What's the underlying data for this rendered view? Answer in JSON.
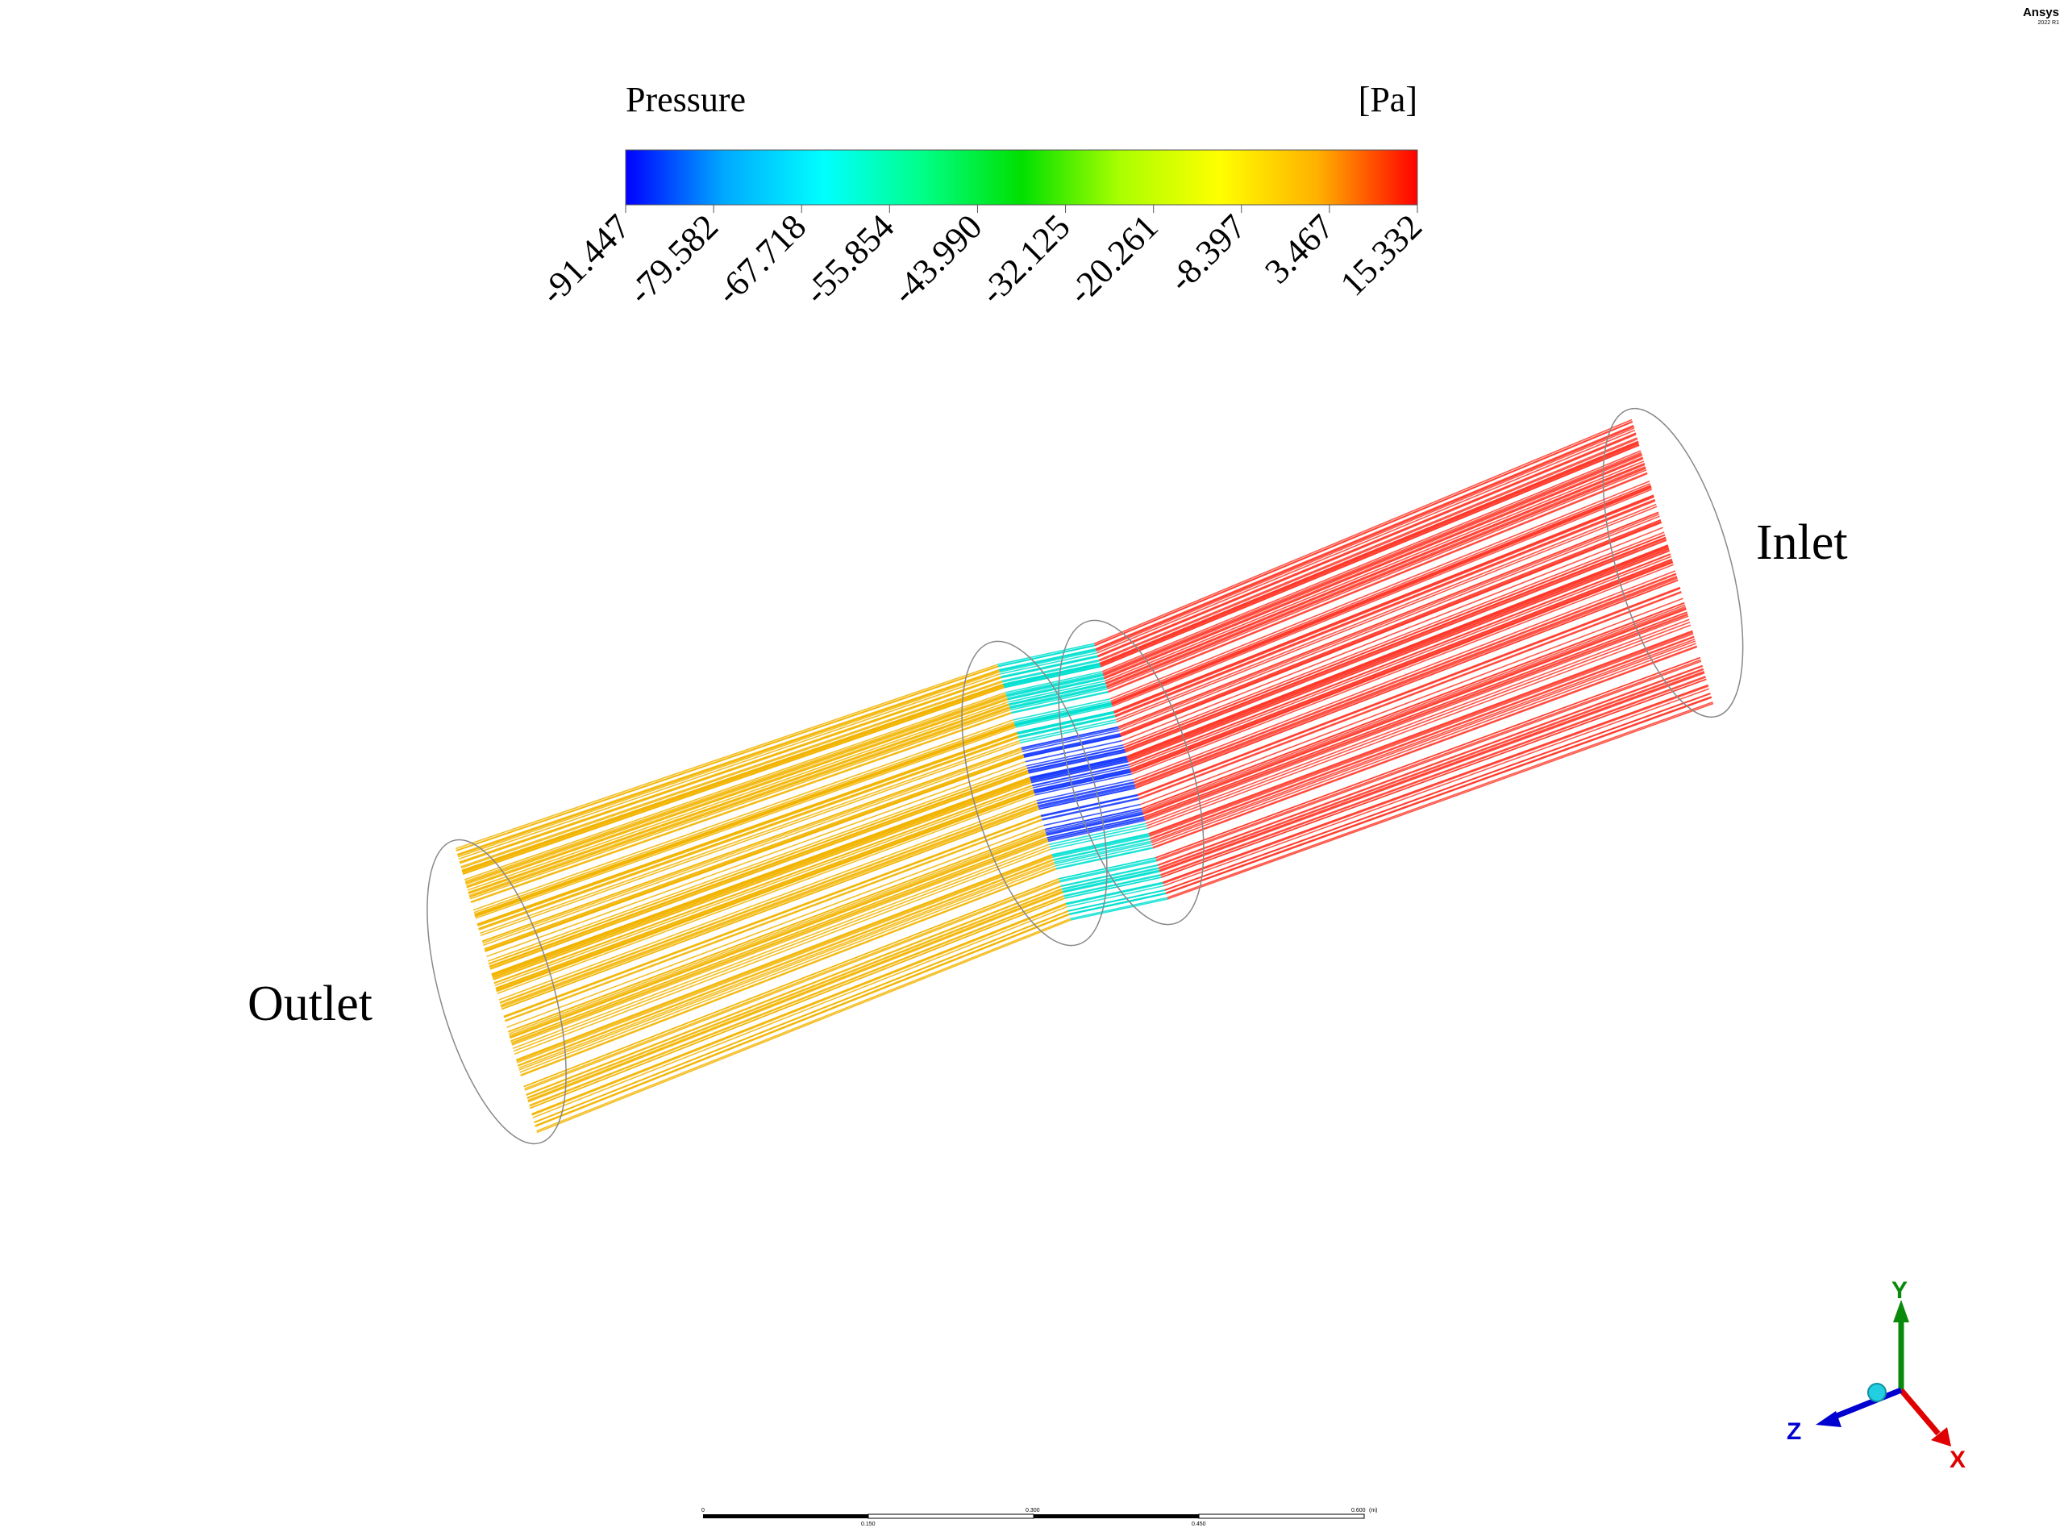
{
  "branding": {
    "name": "Ansys",
    "version": "2022 R1"
  },
  "legend": {
    "title": "Pressure",
    "unit": "[Pa]",
    "min": -91.447,
    "max": 15.332,
    "ticks": [
      "-91.447",
      "-79.582",
      "-67.718",
      "-55.854",
      "-43.990",
      "-32.125",
      "-20.261",
      "-8.397",
      "3.467",
      "15.332"
    ],
    "colormap": [
      "#0000ff",
      "#00aaff",
      "#00ffff",
      "#00ff88",
      "#00e000",
      "#aaff00",
      "#ffff00",
      "#ffb000",
      "#ff0000"
    ]
  },
  "labels": {
    "outlet": "Outlet",
    "inlet": "Inlet"
  },
  "triad": {
    "y": "Y",
    "x": "X",
    "z": "Z"
  },
  "scale_bar": {
    "top_labels": [
      "0",
      "0.300",
      "0.600"
    ],
    "bottom_labels": [
      "0.150",
      "0.450"
    ],
    "unit": "(m)"
  },
  "colors": {
    "outlet_region": "#f2b400",
    "throat_region": "#00e0d0",
    "throat_core": "#1a3cff",
    "inlet_region": "#ff3a2a"
  }
}
